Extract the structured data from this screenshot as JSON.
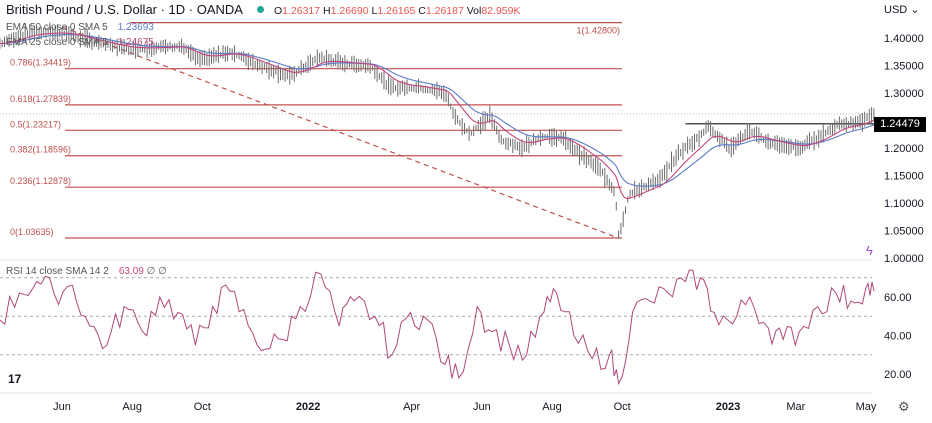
{
  "header": {
    "title": "British Pound / U.S. Dollar · 1D · OANDA",
    "open": "1.26317",
    "high": "1.26690",
    "low": "1.26165",
    "close": "1.26187",
    "vol": "82.959K",
    "o_label": "O",
    "h_label": "H",
    "l_label": "L",
    "c_label": "C",
    "vol_label": "Vol"
  },
  "indicators": {
    "ema50_label": "EMA 50 close 0 SMA 5",
    "ema50_value": "1.23693",
    "ema25_label": "EMA 25 close 0 SMA 5",
    "ema25_value": "1.24675",
    "rsi_label": "RSI 14 close SMA 14 2",
    "rsi_value": "63.09",
    "rsi_extra": "∅ ∅"
  },
  "axis": {
    "currency": "USD",
    "last_price": "1.24479"
  },
  "colors": {
    "price": "#6b6b6b",
    "ema50": "#5b7bc9",
    "ema25": "#c2477f",
    "fib": "#c0504d",
    "rsi": "#b0477a",
    "last_price_bg": "#000000"
  },
  "chart_data": [
    {
      "type": "line",
      "title": "British Pound / U.S. Dollar · 1D · OANDA",
      "ylim": [
        1.0,
        1.43
      ],
      "yticks": [
        "1.40000",
        "1.35000",
        "1.30000",
        "1.20000",
        "1.15000",
        "1.10000",
        "1.05000",
        "1.00000"
      ],
      "xticks": [
        {
          "label": "Jun",
          "date": "2021-06-01"
        },
        {
          "label": "Aug",
          "date": "2021-08-01"
        },
        {
          "label": "Oct",
          "date": "2021-10-01"
        },
        {
          "label": "2022",
          "date": "2022-01-01"
        },
        {
          "label": "Apr",
          "date": "2022-04-01"
        },
        {
          "label": "Jun",
          "date": "2022-06-01"
        },
        {
          "label": "Aug",
          "date": "2022-08-01"
        },
        {
          "label": "Oct",
          "date": "2022-10-01"
        },
        {
          "label": "2023",
          "date": "2023-01-01"
        },
        {
          "label": "Mar",
          "date": "2023-03-01"
        },
        {
          "label": "May",
          "date": "2023-05-01"
        }
      ],
      "fib_levels": [
        {
          "label": "1(1.42800)",
          "value": 1.428
        },
        {
          "label": "0.786(1.34419)",
          "value": 1.34419
        },
        {
          "label": "0.618(1.27839)",
          "value": 1.27839
        },
        {
          "label": "0.5(1.23217)",
          "value": 1.23217
        },
        {
          "label": "0.382(1.18596)",
          "value": 1.18596
        },
        {
          "label": "0.236(1.12878)",
          "value": 1.12878
        },
        {
          "label": "0(1.03635)",
          "value": 1.03635
        }
      ],
      "trendline": {
        "from": [
          "2021-06-01",
          1.42
        ],
        "to": [
          "2022-09-28",
          1.036
        ]
      },
      "resistance": {
        "from": "2022-11-25",
        "to": "2023-05-10",
        "value": 1.244
      },
      "price": [
        [
          "2021-04-08",
          1.39
        ],
        [
          "2021-05-04",
          1.41
        ],
        [
          "2021-06-01",
          1.41
        ],
        [
          "2021-07-04",
          1.39
        ],
        [
          "2021-07-30",
          1.38
        ],
        [
          "2021-09-12",
          1.385
        ],
        [
          "2021-09-29",
          1.36
        ],
        [
          "2021-10-25",
          1.375
        ],
        [
          "2021-11-20",
          1.35
        ],
        [
          "2021-12-16",
          1.33
        ],
        [
          "2022-01-11",
          1.365
        ],
        [
          "2022-01-29",
          1.355
        ],
        [
          "2022-02-24",
          1.35
        ],
        [
          "2022-03-13",
          1.31
        ],
        [
          "2022-04-08",
          1.31
        ],
        [
          "2022-04-30",
          1.3
        ],
        [
          "2022-05-09",
          1.255
        ],
        [
          "2022-05-22",
          1.225
        ],
        [
          "2022-06-08",
          1.26
        ],
        [
          "2022-06-17",
          1.215
        ],
        [
          "2022-07-04",
          1.2
        ],
        [
          "2022-07-22",
          1.22
        ],
        [
          "2022-08-08",
          1.22
        ],
        [
          "2022-08-25",
          1.19
        ],
        [
          "2022-09-12",
          1.16
        ],
        [
          "2022-09-25",
          1.12
        ],
        [
          "2022-09-28",
          1.04
        ],
        [
          "2022-10-07",
          1.115
        ],
        [
          "2022-10-20",
          1.13
        ],
        [
          "2022-11-02",
          1.14
        ],
        [
          "2022-11-19",
          1.19
        ],
        [
          "2022-12-07",
          1.22
        ],
        [
          "2022-12-15",
          1.24
        ],
        [
          "2023-01-02",
          1.2
        ],
        [
          "2023-01-19",
          1.23
        ],
        [
          "2023-02-06",
          1.21
        ],
        [
          "2023-03-04",
          1.2
        ],
        [
          "2023-03-21",
          1.22
        ],
        [
          "2023-04-08",
          1.245
        ],
        [
          "2023-04-25",
          1.245
        ],
        [
          "2023-05-08",
          1.262
        ]
      ]
    },
    {
      "type": "line",
      "title": "RSI 14 close SMA 14 2",
      "ylim": [
        10,
        75
      ],
      "yticks": [
        "60.00",
        "40.00",
        "20.00"
      ],
      "bands": [
        70,
        50,
        30
      ],
      "rsi": [
        [
          "2021-04-08",
          48
        ],
        [
          "2021-04-25",
          62
        ],
        [
          "2021-05-10",
          68
        ],
        [
          "2021-05-25",
          62
        ],
        [
          "2021-06-10",
          66
        ],
        [
          "2021-06-25",
          45
        ],
        [
          "2021-07-10",
          35
        ],
        [
          "2021-07-25",
          55
        ],
        [
          "2021-08-10",
          42
        ],
        [
          "2021-08-25",
          60
        ],
        [
          "2021-09-10",
          52
        ],
        [
          "2021-09-25",
          35
        ],
        [
          "2021-10-10",
          55
        ],
        [
          "2021-10-25",
          63
        ],
        [
          "2021-11-10",
          45
        ],
        [
          "2021-11-25",
          33
        ],
        [
          "2021-12-10",
          38
        ],
        [
          "2021-12-25",
          55
        ],
        [
          "2022-01-12",
          72
        ],
        [
          "2022-01-28",
          45
        ],
        [
          "2022-02-10",
          58
        ],
        [
          "2022-02-28",
          50
        ],
        [
          "2022-03-15",
          30
        ],
        [
          "2022-03-31",
          52
        ],
        [
          "2022-04-15",
          48
        ],
        [
          "2022-04-30",
          25
        ],
        [
          "2022-05-12",
          18
        ],
        [
          "2022-05-28",
          55
        ],
        [
          "2022-06-10",
          42
        ],
        [
          "2022-06-25",
          35
        ],
        [
          "2022-07-10",
          30
        ],
        [
          "2022-07-25",
          52
        ],
        [
          "2022-08-05",
          62
        ],
        [
          "2022-08-20",
          40
        ],
        [
          "2022-09-05",
          28
        ],
        [
          "2022-09-20",
          30
        ],
        [
          "2022-09-28",
          15
        ],
        [
          "2022-10-10",
          52
        ],
        [
          "2022-10-25",
          58
        ],
        [
          "2022-11-10",
          62
        ],
        [
          "2022-11-25",
          68
        ],
        [
          "2022-12-08",
          70
        ],
        [
          "2022-12-20",
          52
        ],
        [
          "2023-01-05",
          46
        ],
        [
          "2023-01-20",
          60
        ],
        [
          "2023-02-05",
          44
        ],
        [
          "2023-02-18",
          38
        ],
        [
          "2023-03-04",
          42
        ],
        [
          "2023-03-20",
          55
        ],
        [
          "2023-04-05",
          62
        ],
        [
          "2023-04-18",
          58
        ],
        [
          "2023-05-01",
          65
        ],
        [
          "2023-05-08",
          63
        ]
      ]
    }
  ]
}
